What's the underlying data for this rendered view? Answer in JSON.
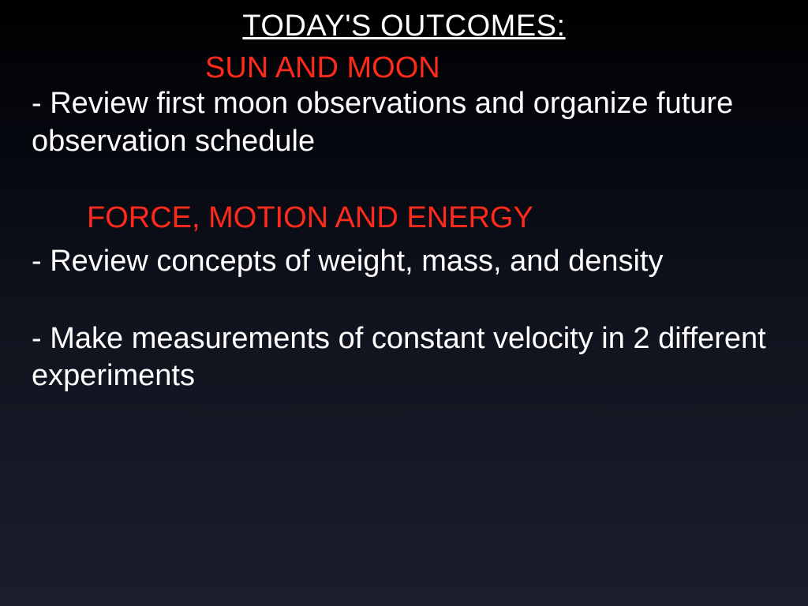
{
  "slide": {
    "title": "TODAY'S  OUTCOMES:",
    "section1": {
      "heading": "SUN AND MOON",
      "bullet": "- Review first moon observations and organize future observation schedule"
    },
    "section2": {
      "heading": "FORCE, MOTION AND ENERGY",
      "bullet1": "- Review concepts of weight, mass, and density",
      "bullet2": "- Make measurements of constant velocity in 2 different experiments"
    },
    "colors": {
      "background_top": "#000000",
      "background_bottom": "#1a1e2b",
      "title_color": "#ffffff",
      "heading_color": "#ff2a1a",
      "body_color": "#ffffff"
    },
    "typography": {
      "title_fontsize": 38,
      "heading_fontsize": 38,
      "body_fontsize": 38,
      "font_family": "Arial"
    }
  }
}
